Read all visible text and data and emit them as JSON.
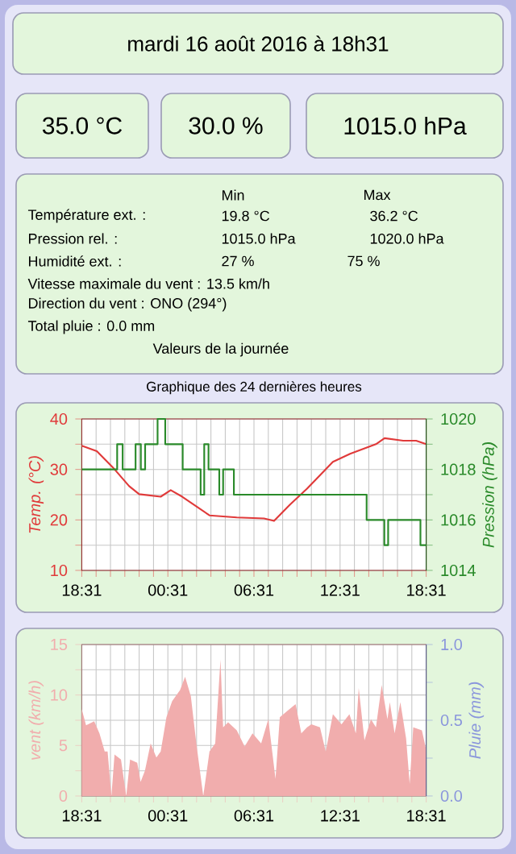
{
  "chart_data": [
    {
      "type": "other",
      "title": "mardi 16 août 2016 à 18h31",
      "annotations": [
        "35.0 °C",
        "30.0 %",
        "1015.0 hPa",
        "Min",
        "Max",
        "Température ext. :",
        "19.8 °C",
        "36.2 °C",
        "Pression rel. :",
        "1015.0 hPa",
        "1020.0 hPa",
        "Humidité ext. :",
        "27 %",
        "75 %",
        "Vitesse maximale du vent : 13.5 km/h",
        "Direction du vent : ONO (294°)",
        "Total pluie : 0.0 mm",
        "Valeurs de la journée"
      ]
    },
    {
      "type": "line",
      "title": "Graphique des 24 dernières heures",
      "ylabel": "Temp. (°C)",
      "y2label": "Pression (hPa)",
      "grid": true,
      "xlim": [
        "2016-08-15T18:31",
        "2016-08-16T18:31"
      ],
      "xticks": [
        {
          "value": "2016-08-15T18:31",
          "label": "18:31"
        },
        {
          "value": "2016-08-15T19:31",
          "label": null
        },
        {
          "value": "2016-08-15T20:31",
          "label": null
        },
        {
          "value": "2016-08-15T21:31",
          "label": null
        },
        {
          "value": "2016-08-15T22:31",
          "label": null
        },
        {
          "value": "2016-08-15T23:31",
          "label": null
        },
        {
          "value": "2016-08-16T00:31",
          "label": "00:31"
        },
        {
          "value": "2016-08-16T01:31",
          "label": null
        },
        {
          "value": "2016-08-16T02:31",
          "label": null
        },
        {
          "value": "2016-08-16T03:31",
          "label": null
        },
        {
          "value": "2016-08-16T04:31",
          "label": null
        },
        {
          "value": "2016-08-16T05:31",
          "label": null
        },
        {
          "value": "2016-08-16T06:31",
          "label": "06:31"
        },
        {
          "value": "2016-08-16T07:31",
          "label": null
        },
        {
          "value": "2016-08-16T08:31",
          "label": null
        },
        {
          "value": "2016-08-16T09:31",
          "label": null
        },
        {
          "value": "2016-08-16T10:31",
          "label": null
        },
        {
          "value": "2016-08-16T11:31",
          "label": null
        },
        {
          "value": "2016-08-16T12:31",
          "label": "12:31"
        },
        {
          "value": "2016-08-16T13:31",
          "label": null
        },
        {
          "value": "2016-08-16T14:31",
          "label": null
        },
        {
          "value": "2016-08-16T15:31",
          "label": null
        },
        {
          "value": "2016-08-16T16:31",
          "label": null
        },
        {
          "value": "2016-08-16T17:31",
          "label": null
        },
        {
          "value": "2016-08-16T18:31",
          "label": "18:31"
        }
      ],
      "ylim": [
        10,
        40
      ],
      "yticks": [
        10,
        {
          "value": 15,
          "label": null
        },
        20,
        {
          "value": 25,
          "label": null
        },
        30,
        {
          "value": 35,
          "label": null
        },
        40
      ],
      "y2lim": [
        1014,
        1020
      ],
      "y2ticks": [
        1014,
        {
          "value": 1015,
          "label": null
        },
        1016,
        {
          "value": 1017,
          "label": null
        },
        1018,
        {
          "value": 1019,
          "label": null
        },
        1020
      ],
      "series": [
        {
          "type": "line",
          "color": "#e03a3a",
          "x": [
            "2016-08-15T18:31",
            "2016-08-15T19:34",
            "2016-08-15T20:41",
            "2016-08-15T21:49",
            "2016-08-15T22:31",
            "2016-08-16T00:01",
            "2016-08-16T00:43",
            "2016-08-16T01:31",
            "2016-08-16T03:25",
            "2016-08-16T05:19",
            "2016-08-16T07:13",
            "2016-08-16T07:55",
            "2016-08-16T09:01",
            "2016-08-16T10:13",
            "2016-08-16T12:01",
            "2016-08-16T13:13",
            "2016-08-16T15:01",
            "2016-08-16T15:37",
            "2016-08-16T16:55",
            "2016-08-16T17:49",
            "2016-08-16T18:31"
          ],
          "values": [
            34.7,
            33.6,
            30.4,
            26.7,
            25.1,
            24.6,
            25.9,
            24.6,
            20.9,
            20.5,
            20.3,
            19.8,
            23,
            26.2,
            31.5,
            33.1,
            35,
            36.2,
            35.7,
            35.7,
            35
          ]
        },
        {
          "type": "step",
          "axis": "y2",
          "color": "#2a8a2a",
          "x": [
            "2016-08-15T18:31",
            "2016-08-15T20:59",
            "2016-08-15T21:22",
            "2016-08-15T22:16",
            "2016-08-15T22:38",
            "2016-08-15T22:56",
            "2016-08-15T23:48",
            "2016-08-16T00:20",
            "2016-08-16T01:33",
            "2016-08-16T02:48",
            "2016-08-16T03:03",
            "2016-08-16T03:21",
            "2016-08-16T04:06",
            "2016-08-16T04:22",
            "2016-08-16T05:07",
            "2016-08-16T14:22",
            "2016-08-16T15:36",
            "2016-08-16T15:52",
            "2016-08-16T18:07",
            "2016-08-16T18:31"
          ],
          "values": [
            1018,
            1019,
            1018,
            1019,
            1018,
            1019,
            1020,
            1019,
            1018,
            1017,
            1019,
            1018,
            1017,
            1018,
            1017,
            1016,
            1015,
            1016,
            1015,
            1015
          ]
        }
      ]
    },
    {
      "type": "area",
      "ylabel": "vent (km/h)",
      "y2label": "Pluie (mm)",
      "grid": true,
      "xlim": [
        "2016-08-15T18:31",
        "2016-08-16T18:31"
      ],
      "xticks": [
        {
          "value": "2016-08-15T18:31",
          "label": "18:31"
        },
        {
          "value": "2016-08-15T19:31",
          "label": null
        },
        {
          "value": "2016-08-15T20:31",
          "label": null
        },
        {
          "value": "2016-08-15T21:31",
          "label": null
        },
        {
          "value": "2016-08-15T22:31",
          "label": null
        },
        {
          "value": "2016-08-15T23:31",
          "label": null
        },
        {
          "value": "2016-08-16T00:31",
          "label": "00:31"
        },
        {
          "value": "2016-08-16T01:31",
          "label": null
        },
        {
          "value": "2016-08-16T02:31",
          "label": null
        },
        {
          "value": "2016-08-16T03:31",
          "label": null
        },
        {
          "value": "2016-08-16T04:31",
          "label": null
        },
        {
          "value": "2016-08-16T05:31",
          "label": null
        },
        {
          "value": "2016-08-16T06:31",
          "label": "06:31"
        },
        {
          "value": "2016-08-16T07:31",
          "label": null
        },
        {
          "value": "2016-08-16T08:31",
          "label": null
        },
        {
          "value": "2016-08-16T09:31",
          "label": null
        },
        {
          "value": "2016-08-16T10:31",
          "label": null
        },
        {
          "value": "2016-08-16T11:31",
          "label": null
        },
        {
          "value": "2016-08-16T12:31",
          "label": "12:31"
        },
        {
          "value": "2016-08-16T13:31",
          "label": null
        },
        {
          "value": "2016-08-16T14:31",
          "label": null
        },
        {
          "value": "2016-08-16T15:31",
          "label": null
        },
        {
          "value": "2016-08-16T16:31",
          "label": null
        },
        {
          "value": "2016-08-16T17:31",
          "label": null
        },
        {
          "value": "2016-08-16T18:31",
          "label": "18:31"
        }
      ],
      "ylim": [
        0,
        15
      ],
      "yticks": [
        0,
        {
          "value": 2.5,
          "label": null
        },
        5,
        {
          "value": 7.5,
          "label": null
        },
        10,
        {
          "value": 12.5,
          "label": null
        },
        15
      ],
      "y2lim": [
        0,
        1
      ],
      "y2ticks": [
        {
          "value": 0,
          "label": "0.0"
        },
        {
          "value": 0.25,
          "label": null
        },
        {
          "value": 0.5,
          "label": "0.5"
        },
        {
          "value": 0.75,
          "label": null
        },
        {
          "value": 1,
          "label": "1.0"
        }
      ],
      "series": [
        {
          "type": "area",
          "color": "#f1adad",
          "x": [
            "2016-08-15T18:31",
            "2016-08-15T18:49",
            "2016-08-15T19:23",
            "2016-08-15T19:45",
            "2016-08-15T20:07",
            "2016-08-15T20:19",
            "2016-08-15T20:35",
            "2016-08-15T20:48",
            "2016-08-15T21:15",
            "2016-08-15T21:37",
            "2016-08-15T21:53",
            "2016-08-15T22:23",
            "2016-08-15T22:37",
            "2016-08-15T22:55",
            "2016-08-15T23:19",
            "2016-08-15T23:43",
            "2016-08-16T00:01",
            "2016-08-16T00:25",
            "2016-08-16T00:49",
            "2016-08-16T01:22",
            "2016-08-16T01:43",
            "2016-08-16T02:07",
            "2016-08-16T02:30",
            "2016-08-16T02:59",
            "2016-08-16T03:25",
            "2016-08-16T03:49",
            "2016-08-16T04:11",
            "2016-08-16T04:22",
            "2016-08-16T04:43",
            "2016-08-16T05:19",
            "2016-08-16T05:52",
            "2016-08-16T06:25",
            "2016-08-16T07:01",
            "2016-08-16T07:31",
            "2016-08-16T08:01",
            "2016-08-16T08:19",
            "2016-08-16T08:49",
            "2016-08-16T09:25",
            "2016-08-16T09:49",
            "2016-08-16T10:13",
            "2016-08-16T10:31",
            "2016-08-16T11:07",
            "2016-08-16T11:31",
            "2016-08-16T12:01",
            "2016-08-16T12:37",
            "2016-08-16T13:10",
            "2016-08-16T13:37",
            "2016-08-16T13:49",
            "2016-08-16T14:13",
            "2016-08-16T14:40",
            "2016-08-16T15:01",
            "2016-08-16T15:25",
            "2016-08-16T15:49",
            "2016-08-16T15:59",
            "2016-08-16T16:19",
            "2016-08-16T16:43",
            "2016-08-16T17:07",
            "2016-08-16T17:22",
            "2016-08-16T17:37",
            "2016-08-16T18:13",
            "2016-08-16T18:31"
          ],
          "values": [
            8.6,
            7.0,
            7.4,
            6.2,
            4.4,
            4.4,
            0,
            4.1,
            3.6,
            0,
            3.6,
            3.3,
            1.4,
            2.5,
            5.2,
            3.8,
            4.4,
            7.8,
            9.4,
            10.5,
            11.8,
            9.9,
            5.2,
            0,
            4.4,
            5.2,
            13.5,
            6.8,
            7.3,
            6.5,
            4.9,
            6.2,
            5.2,
            7.6,
            1.7,
            7.8,
            8.4,
            9.1,
            6.2,
            6.8,
            7.1,
            6.8,
            4.4,
            8.1,
            7.1,
            8.1,
            6.2,
            10.7,
            5.5,
            7.6,
            6.8,
            11.0,
            7.6,
            9.3,
            6.2,
            9.3,
            5.7,
            1.2,
            6.8,
            6.5,
            4.6
          ]
        }
      ]
    }
  ]
}
